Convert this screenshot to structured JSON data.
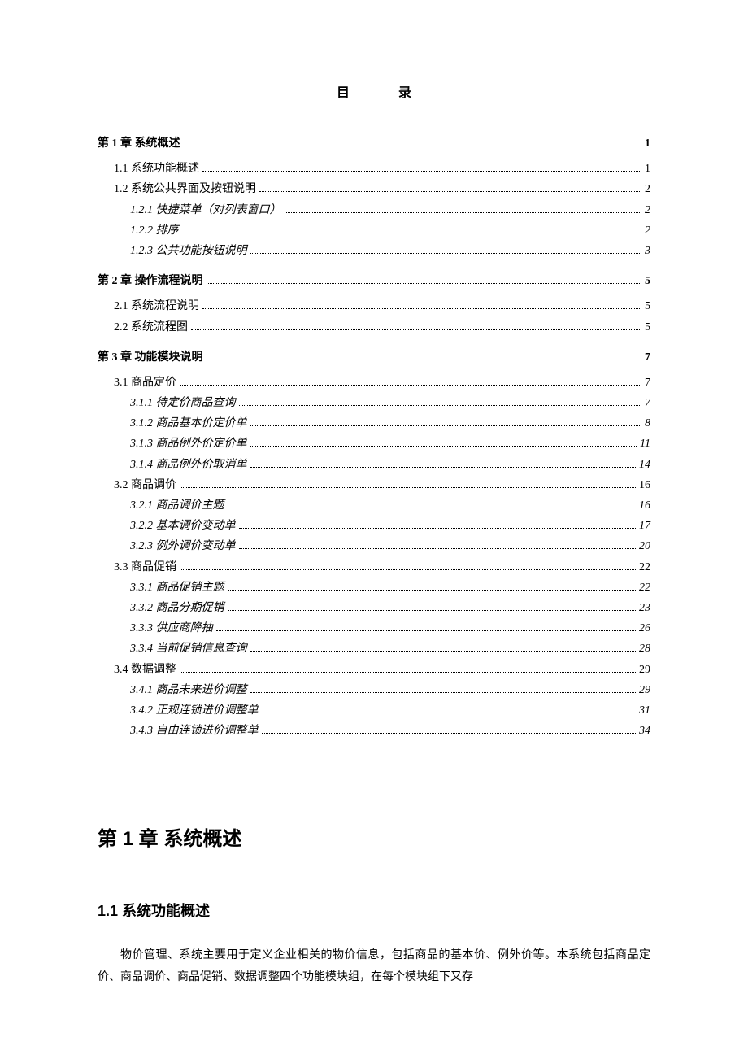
{
  "toc_title": "目录",
  "toc_entries": [
    {
      "label": "第 1 章  系统概述",
      "page": "1",
      "level": 0
    },
    {
      "label": "1.1 系统功能概述",
      "page": "1",
      "level": 1
    },
    {
      "label": "1.2 系统公共界面及按钮说明",
      "page": "2",
      "level": 1
    },
    {
      "label": "1.2.1 快捷菜单（对列表窗口）",
      "page": "2",
      "level": 2
    },
    {
      "label": "1.2.2 排序",
      "page": "2",
      "level": 2
    },
    {
      "label": "1.2.3 公共功能按钮说明",
      "page": "3",
      "level": 2
    },
    {
      "label": "第 2 章  操作流程说明",
      "page": "5",
      "level": 0
    },
    {
      "label": "2.1 系统流程说明",
      "page": "5",
      "level": 1
    },
    {
      "label": "2.2 系统流程图",
      "page": "5",
      "level": 1
    },
    {
      "label": "第 3 章  功能模块说明",
      "page": "7",
      "level": 0
    },
    {
      "label": "3.1 商品定价",
      "page": "7",
      "level": 1
    },
    {
      "label": "3.1.1 待定价商品查询",
      "page": "7",
      "level": 2
    },
    {
      "label": "3.1.2 商品基本价定价单",
      "page": "8",
      "level": 2
    },
    {
      "label": "3.1.3 商品例外价定价单",
      "page": "11",
      "level": 2
    },
    {
      "label": "3.1.4 商品例外价取消单",
      "page": "14",
      "level": 2
    },
    {
      "label": "3.2 商品调价",
      "page": "16",
      "level": 1
    },
    {
      "label": "3.2.1 商品调价主题",
      "page": "16",
      "level": 2
    },
    {
      "label": "3.2.2 基本调价变动单",
      "page": "17",
      "level": 2
    },
    {
      "label": "3.2.3 例外调价变动单",
      "page": "20",
      "level": 2
    },
    {
      "label": "3.3 商品促销",
      "page": "22",
      "level": 1
    },
    {
      "label": "3.3.1 商品促销主题",
      "page": "22",
      "level": 2
    },
    {
      "label": "3.3.2 商品分期促销",
      "page": "23",
      "level": 2
    },
    {
      "label": "3.3.3 供应商降抽",
      "page": "26",
      "level": 2
    },
    {
      "label": "3.3.4 当前促销信息查询",
      "page": "28",
      "level": 2
    },
    {
      "label": "3.4 数据调整",
      "page": "29",
      "level": 1
    },
    {
      "label": "3.4.1 商品未来进价调整",
      "page": "29",
      "level": 2
    },
    {
      "label": "3.4.2 正规连锁进价调整单",
      "page": "31",
      "level": 2
    },
    {
      "label": "3.4.3 自由连锁进价调整单",
      "page": "34",
      "level": 2
    }
  ],
  "chapter_heading": "第 1 章  系统概述",
  "section_heading": "1.1 系统功能概述",
  "body_paragraph": "物价管理、系统主要用于定义企业相关的物价信息，包括商品的基本价、例外价等。本系统包括商品定价、商品调价、商品促销、数据调整四个功能模块组，在每个模块组下又存"
}
